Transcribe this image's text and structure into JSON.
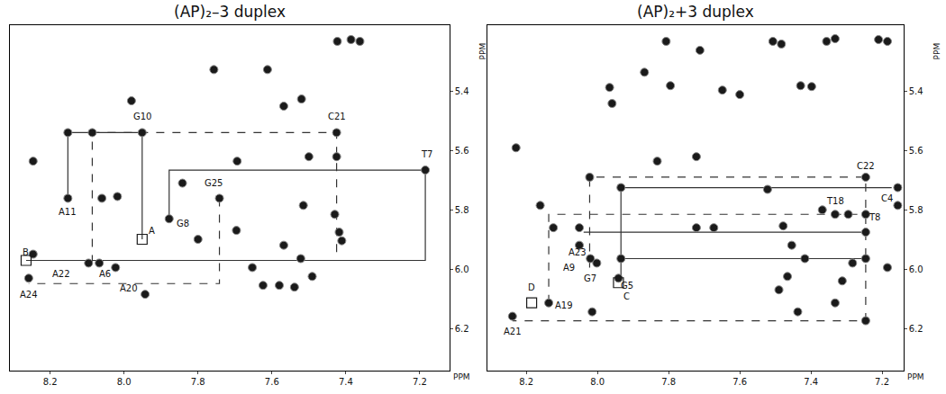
{
  "chart_data": [
    {
      "type": "scatter",
      "title": "(AP)₂–3 duplex",
      "x_label": "PPM",
      "y_label": "PPM",
      "marker": "circle",
      "color": "#1a1a1a",
      "grid": false,
      "xlim": [
        8.31,
        7.12
      ],
      "ylim": [
        6.34,
        5.18
      ],
      "xticks": [
        8.2,
        {
          "value": 8,
          "label": "8.0"
        },
        7.8,
        7.6,
        7.4,
        7.2
      ],
      "yticks": [
        5.4,
        5.6,
        5.8,
        {
          "value": 6,
          "label": "6.0"
        },
        6.2
      ],
      "x": [
        7.757,
        7.612,
        7.98,
        7.52,
        7.568,
        7.423,
        7.386,
        7.362,
        8.152,
        8.086,
        7.951,
        8.246,
        7.694,
        7.425,
        7.5,
        7.425,
        7.185,
        7.742,
        8.152,
        8.06,
        8.018,
        7.878,
        7.696,
        7.8,
        7.568,
        7.43,
        7.418,
        7.411,
        7.515,
        8.096,
        8.067,
        8.023,
        8.246,
        8.258,
        7.943,
        7.653,
        7.522,
        7.491,
        7.624,
        7.58,
        7.539,
        7.842
      ],
      "y": [
        5.328,
        5.328,
        5.433,
        5.427,
        5.451,
        5.233,
        5.227,
        5.233,
        5.54,
        5.54,
        5.54,
        5.636,
        5.636,
        5.54,
        5.621,
        5.621,
        5.666,
        5.761,
        5.761,
        5.761,
        5.755,
        5.83,
        5.869,
        5.899,
        5.919,
        5.815,
        5.875,
        5.904,
        5.785,
        5.979,
        5.979,
        5.994,
        5.949,
        6.03,
        6.084,
        5.994,
        5.964,
        6.024,
        6.054,
        6.054,
        6.06,
        5.71
      ],
      "boxes": [
        {
          "x": 7.951,
          "y": 5.899
        },
        {
          "x": 8.265,
          "y": 5.97
        }
      ],
      "connectivity": [
        {
          "line_style": "solid",
          "x": [
            8.152,
            8.152,
            7.951,
            7.951
          ],
          "y": [
            5.761,
            5.54,
            5.54,
            5.899
          ]
        },
        {
          "line_style": "dash",
          "x": [
            8.086,
            8.086,
            7.425,
            7.425
          ],
          "y": [
            5.979,
            5.54,
            5.54,
            5.97
          ]
        },
        {
          "line_style": "solid",
          "x": [
            7.878,
            7.878,
            7.185,
            7.185,
            8.265
          ],
          "y": [
            5.83,
            5.666,
            5.666,
            5.97,
            5.97
          ]
        },
        {
          "line_style": "dash",
          "x": [
            7.742,
            7.742,
            8.258
          ],
          "y": [
            5.761,
            6.048,
            6.048
          ]
        }
      ],
      "annotations": [
        {
          "text": "G10",
          "x": 7.951,
          "y": 5.487
        },
        {
          "text": "C21",
          "x": 7.423,
          "y": 5.487
        },
        {
          "text": "T7",
          "x": 7.181,
          "y": 5.612
        },
        {
          "text": "G25",
          "x": 7.757,
          "y": 5.71
        },
        {
          "text": "A11",
          "x": 8.152,
          "y": 5.806
        },
        {
          "text": "G8",
          "x": 7.842,
          "y": 5.845
        },
        {
          "text": "A",
          "x": 7.926,
          "y": 5.869
        },
        {
          "text": "B",
          "x": 8.265,
          "y": 5.943
        },
        {
          "text": "A22",
          "x": 8.169,
          "y": 6.015
        },
        {
          "text": "A6",
          "x": 8.052,
          "y": 6.015
        },
        {
          "text": "A20",
          "x": 7.987,
          "y": 6.063
        },
        {
          "text": "A24",
          "x": 8.258,
          "y": 6.084
        }
      ]
    },
    {
      "type": "scatter",
      "title": "(AP)₂+3 duplex",
      "x_label": "PPM",
      "y_label": "PPM",
      "marker": "circle",
      "color": "#1a1a1a",
      "grid": false,
      "xlim": [
        8.31,
        7.14
      ],
      "ylim": [
        6.34,
        5.18
      ],
      "xticks": [
        8.2,
        {
          "value": 8,
          "label": "8.0"
        },
        7.8,
        7.6,
        7.4,
        7.2
      ],
      "yticks": [
        5.4,
        5.6,
        5.8,
        {
          "value": 6,
          "label": "6.0"
        },
        6.2
      ],
      "x": [
        7.807,
        7.712,
        7.507,
        7.483,
        7.356,
        7.332,
        7.21,
        7.185,
        7.649,
        7.6,
        7.966,
        7.959,
        7.795,
        7.868,
        7.429,
        7.398,
        8.229,
        8.022,
        7.832,
        7.722,
        7.246,
        7.156,
        7.156,
        7.934,
        7.522,
        7.368,
        7.332,
        7.295,
        7.246,
        7.246,
        8.051,
        8.051,
        8.02,
        8.002,
        7.934,
        7.941,
        8.137,
        8.239,
        8.015,
        7.673,
        7.722,
        7.478,
        7.454,
        7.466,
        7.417,
        7.283,
        7.312,
        7.185,
        7.49,
        7.437,
        7.332,
        8.124,
        8.161,
        7.246,
        7.246
      ],
      "y": [
        5.233,
        5.263,
        5.233,
        5.242,
        5.233,
        5.224,
        5.227,
        5.233,
        5.397,
        5.412,
        5.388,
        5.442,
        5.382,
        5.337,
        5.382,
        5.385,
        5.591,
        5.69,
        5.636,
        5.621,
        5.69,
        5.725,
        5.785,
        5.725,
        5.731,
        5.8,
        5.815,
        5.815,
        5.815,
        5.875,
        5.86,
        5.919,
        5.964,
        5.979,
        5.964,
        6.03,
        6.113,
        6.158,
        6.143,
        5.86,
        5.86,
        5.854,
        5.919,
        6.024,
        5.964,
        5.979,
        6.039,
        5.994,
        6.069,
        6.143,
        6.113,
        5.86,
        5.785,
        5.964,
        6.173
      ],
      "boxes": [
        {
          "x": 7.941,
          "y": 6.045
        },
        {
          "x": 8.185,
          "y": 6.113
        }
      ],
      "connectivity": [
        {
          "line_style": "dash",
          "x": [
            8.022,
            8.022,
            7.246,
            7.246,
            8.239
          ],
          "y": [
            5.994,
            5.69,
            5.69,
            6.173,
            6.173
          ]
        },
        {
          "line_style": "dash",
          "x": [
            8.137,
            8.137,
            7.246
          ],
          "y": [
            6.113,
            5.815,
            5.815
          ]
        },
        {
          "line_style": "solid",
          "x": [
            7.173,
            7.934,
            7.934
          ],
          "y": [
            5.725,
            5.725,
            6.024
          ]
        },
        {
          "line_style": "solid",
          "x": [
            7.246,
            8.039
          ],
          "y": [
            5.875,
            5.875
          ]
        },
        {
          "line_style": "solid",
          "x": [
            7.934,
            7.246
          ],
          "y": [
            5.964,
            5.964
          ]
        }
      ],
      "annotations": [
        {
          "text": "C22",
          "x": 7.246,
          "y": 5.651
        },
        {
          "text": "C4",
          "x": 7.185,
          "y": 5.761
        },
        {
          "text": "T18",
          "x": 7.332,
          "y": 5.77
        },
        {
          "text": "T8",
          "x": 7.222,
          "y": 5.824
        },
        {
          "text": "A23",
          "x": 8.056,
          "y": 5.943
        },
        {
          "text": "A9",
          "x": 8.08,
          "y": 5.994
        },
        {
          "text": "G7",
          "x": 8.02,
          "y": 6.03
        },
        {
          "text": "G5",
          "x": 7.917,
          "y": 6.054
        },
        {
          "text": "D",
          "x": 8.185,
          "y": 6.06
        },
        {
          "text": "C",
          "x": 7.917,
          "y": 6.09
        },
        {
          "text": "A19",
          "x": 8.093,
          "y": 6.122
        },
        {
          "text": "A21",
          "x": 8.239,
          "y": 6.209
        }
      ]
    }
  ]
}
